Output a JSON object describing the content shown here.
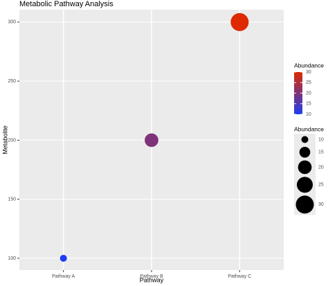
{
  "chart_data": {
    "type": "scatter",
    "title": "Metabolic Pathway Analysis",
    "x_label": "Pathway",
    "y_label": "Metabolite",
    "categories": [
      "Pathway A",
      "Pathway B",
      "Pathway C"
    ],
    "values": [
      100,
      200,
      300
    ],
    "sizes": [
      10,
      20,
      30
    ],
    "ylim": [
      90,
      310.5
    ],
    "yticks": [
      100,
      150,
      200,
      250,
      300
    ],
    "grid": true,
    "color_legend": {
      "title": "Abundance",
      "low_color": "#1f3cf0",
      "high_color": "#dd2a00",
      "range": [
        10,
        30
      ],
      "ticks": [
        10,
        15,
        20,
        25,
        30
      ]
    },
    "size_legend": {
      "title": "Abundance",
      "range": [
        10,
        30
      ],
      "breaks": [
        10,
        15,
        20,
        25,
        30
      ],
      "color": "#000000"
    }
  }
}
